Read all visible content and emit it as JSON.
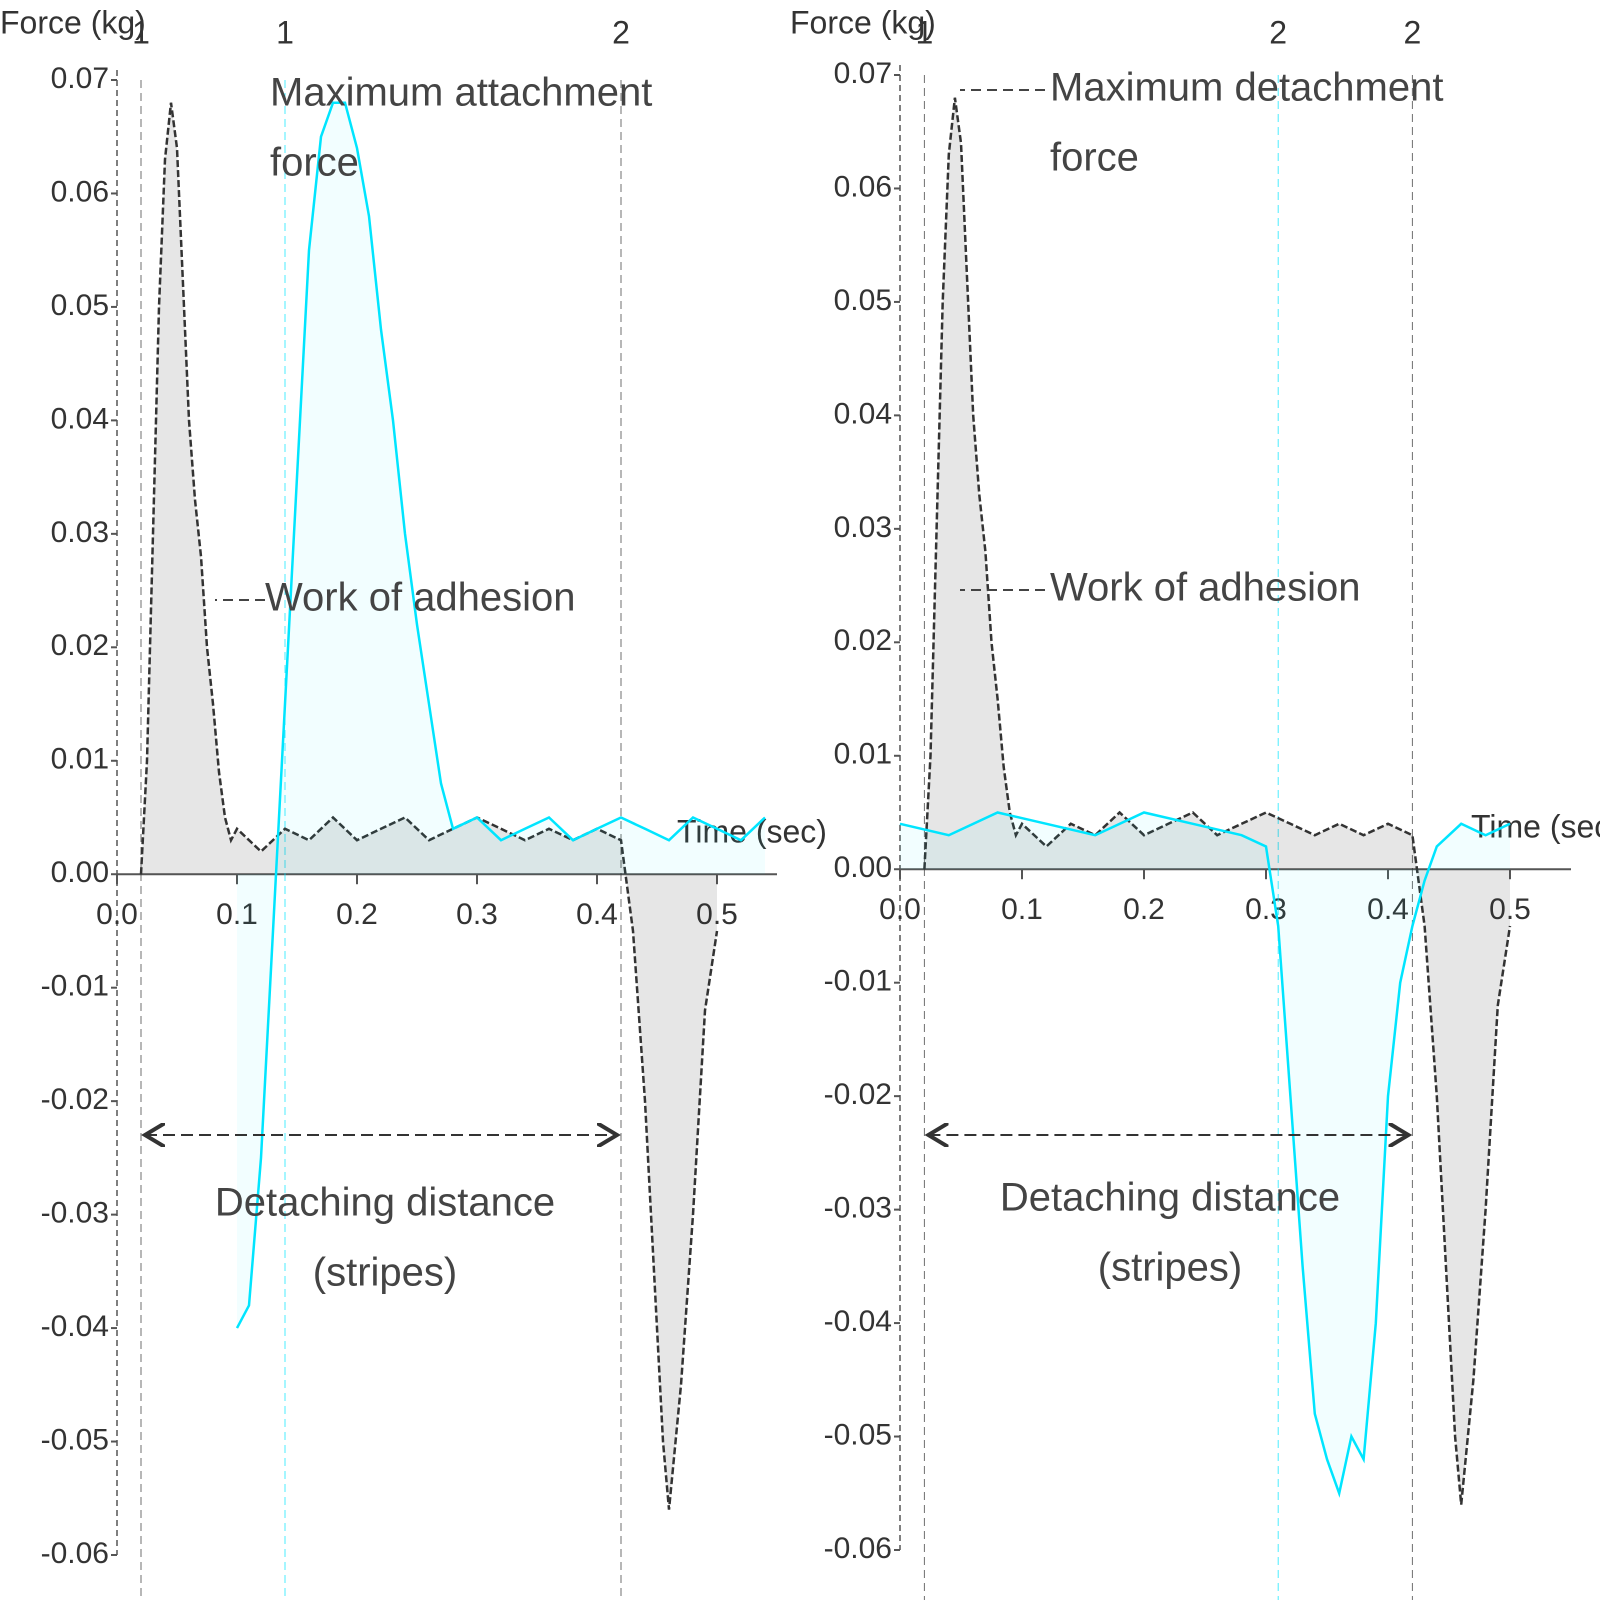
{
  "chart_data": [
    {
      "type": "line",
      "ylabel": "Force (kg)",
      "xlabel": "Time (sec)",
      "xlim": [
        0,
        0.55
      ],
      "ylim": [
        -0.06,
        0.07
      ],
      "xticks": [
        {
          "value": 0,
          "label": "0.0"
        },
        0.1,
        0.2,
        0.3,
        0.4,
        0.5
      ],
      "yticks": [
        0.07,
        0.06,
        0.05,
        0.04,
        0.03,
        0.02,
        0.01,
        {
          "value": 0,
          "label": "0.00"
        },
        -0.01,
        -0.02,
        -0.03,
        -0.04,
        -0.05,
        -0.06
      ],
      "series": [
        {
          "color": "#333333",
          "x": [
            0.02,
            0.025,
            0.03,
            0.035,
            0.04,
            0.045,
            0.05,
            0.055,
            0.06,
            0.065,
            0.07,
            0.075,
            0.08,
            0.085,
            0.09,
            0.095,
            0.1,
            0.12,
            0.14,
            0.16,
            0.18,
            0.2,
            0.22,
            0.24,
            0.26,
            0.28,
            0.3,
            0.32,
            0.34,
            0.36,
            0.38,
            0.4,
            0.42,
            0.43,
            0.44,
            0.45,
            0.455,
            0.46,
            0.47,
            0.48,
            0.49,
            0.5
          ],
          "values": [
            0,
            0.01,
            0.03,
            0.05,
            0.063,
            0.068,
            0.064,
            0.052,
            0.04,
            0.033,
            0.028,
            0.02,
            0.015,
            0.009,
            0.005,
            0.003,
            0.004,
            0.002,
            0.004,
            0.003,
            0.005,
            0.003,
            0.004,
            0.005,
            0.003,
            0.004,
            0.005,
            0.004,
            0.003,
            0.004,
            0.003,
            0.004,
            0.003,
            -0.005,
            -0.02,
            -0.04,
            -0.05,
            -0.056,
            -0.045,
            -0.03,
            -0.012,
            -0.005
          ]
        },
        {
          "color": "#00e5ff",
          "x": [
            0.1,
            0.11,
            0.12,
            0.13,
            0.14,
            0.15,
            0.16,
            0.17,
            0.18,
            0.19,
            0.2,
            0.21,
            0.22,
            0.23,
            0.24,
            0.25,
            0.26,
            0.27,
            0.28,
            0.3,
            0.32,
            0.34,
            0.36,
            0.38,
            0.4,
            0.42,
            0.44,
            0.46,
            0.48,
            0.5,
            0.52,
            0.54
          ],
          "values": [
            -0.04,
            -0.038,
            -0.025,
            -0.005,
            0.015,
            0.035,
            0.055,
            0.065,
            0.068,
            0.068,
            0.064,
            0.058,
            0.048,
            0.04,
            0.03,
            0.022,
            0.015,
            0.008,
            0.004,
            0.005,
            0.003,
            0.004,
            0.005,
            0.003,
            0.004,
            0.005,
            0.004,
            0.003,
            0.005,
            0.004,
            0.003,
            0.005
          ]
        }
      ],
      "markers": [
        {
          "label": "1",
          "x": 0.02,
          "color": "#333333"
        },
        {
          "label": "1",
          "x": 0.14,
          "color": "#00e5ff"
        },
        {
          "label": "2",
          "x": 0.42,
          "color": "#333333"
        }
      ],
      "annotations": [
        {
          "lines": [
            "Maximum attachment",
            "force"
          ]
        },
        {
          "lines": [
            "Work of adhesion"
          ]
        },
        {
          "lines": [
            "Detaching distance",
            "(stripes)"
          ]
        }
      ]
    },
    {
      "type": "line",
      "ylabel": "Force (kg)",
      "xlabel": "Time (sec)",
      "xlim": [
        0,
        0.55
      ],
      "ylim": [
        -0.06,
        0.07
      ],
      "xticks": [
        {
          "value": 0,
          "label": "0.0"
        },
        0.1,
        0.2,
        0.3,
        0.4,
        0.5
      ],
      "yticks": [
        0.07,
        0.06,
        0.05,
        0.04,
        0.03,
        0.02,
        0.01,
        {
          "value": 0,
          "label": "0.00"
        },
        -0.01,
        -0.02,
        -0.03,
        -0.04,
        -0.05,
        -0.06
      ],
      "series": [
        {
          "color": "#333333",
          "x": [
            0.02,
            0.025,
            0.03,
            0.035,
            0.04,
            0.045,
            0.05,
            0.055,
            0.06,
            0.065,
            0.07,
            0.075,
            0.08,
            0.085,
            0.09,
            0.095,
            0.1,
            0.12,
            0.14,
            0.16,
            0.18,
            0.2,
            0.22,
            0.24,
            0.26,
            0.28,
            0.3,
            0.32,
            0.34,
            0.36,
            0.38,
            0.4,
            0.42,
            0.43,
            0.44,
            0.45,
            0.455,
            0.46,
            0.47,
            0.48,
            0.49,
            0.5
          ],
          "values": [
            0,
            0.01,
            0.03,
            0.05,
            0.063,
            0.068,
            0.064,
            0.052,
            0.04,
            0.033,
            0.028,
            0.02,
            0.015,
            0.009,
            0.005,
            0.003,
            0.004,
            0.002,
            0.004,
            0.003,
            0.005,
            0.003,
            0.004,
            0.005,
            0.003,
            0.004,
            0.005,
            0.004,
            0.003,
            0.004,
            0.003,
            0.004,
            0.003,
            -0.005,
            -0.02,
            -0.04,
            -0.05,
            -0.056,
            -0.045,
            -0.03,
            -0.012,
            -0.005
          ]
        },
        {
          "color": "#00e5ff",
          "x": [
            0,
            0.04,
            0.08,
            0.12,
            0.16,
            0.2,
            0.24,
            0.28,
            0.3,
            0.31,
            0.32,
            0.33,
            0.34,
            0.35,
            0.36,
            0.37,
            0.38,
            0.39,
            0.4,
            0.41,
            0.42,
            0.43,
            0.44,
            0.46,
            0.48,
            0.5
          ],
          "values": [
            0.004,
            0.003,
            0.005,
            0.004,
            0.003,
            0.005,
            0.004,
            0.003,
            0.002,
            -0.005,
            -0.02,
            -0.035,
            -0.048,
            -0.052,
            -0.055,
            -0.05,
            -0.052,
            -0.04,
            -0.02,
            -0.01,
            -0.005,
            -0.001,
            0.002,
            0.004,
            0.003,
            0.004
          ]
        }
      ],
      "markers": [
        {
          "label": "1",
          "x": 0.02,
          "color": "#333333"
        },
        {
          "label": "2",
          "x": 0.31,
          "color": "#00e5ff"
        },
        {
          "label": "2",
          "x": 0.42,
          "color": "#333333"
        }
      ],
      "annotations": [
        {
          "lines": [
            "Maximum detachment",
            "force"
          ]
        },
        {
          "lines": [
            "Work of adhesion"
          ]
        },
        {
          "lines": [
            "Detaching distance",
            "(stripes)"
          ]
        }
      ]
    }
  ]
}
